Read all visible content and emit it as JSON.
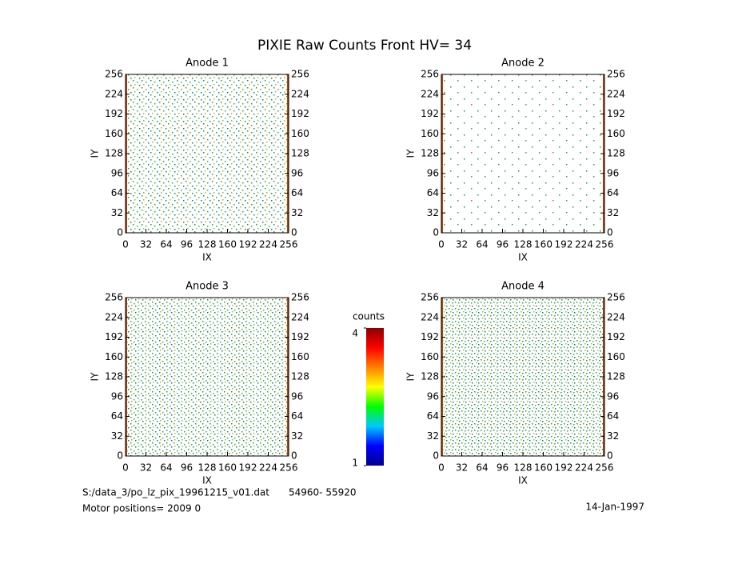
{
  "title": "PIXIE Raw Counts Front HV= 34",
  "chart_data": [
    {
      "type": "heatmap",
      "title": "Anode 1",
      "x_label": "IX",
      "y_label": "IY",
      "xlim": [
        0,
        256
      ],
      "ylim": [
        0,
        256
      ],
      "y2lim": [
        0,
        256
      ],
      "xticks": [
        0,
        32,
        64,
        96,
        128,
        160,
        192,
        224,
        256
      ],
      "yticks": [
        0,
        32,
        64,
        96,
        128,
        160,
        192,
        224,
        256
      ],
      "y2ticks": [
        0,
        32,
        64,
        96,
        128,
        160,
        192,
        224,
        256
      ]
    },
    {
      "type": "heatmap",
      "title": "Anode 2",
      "x_label": "IX",
      "y_label": "IY",
      "xlim": [
        0,
        256
      ],
      "ylim": [
        0,
        256
      ],
      "y2lim": [
        0,
        256
      ],
      "xticks": [
        0,
        32,
        64,
        96,
        128,
        160,
        192,
        224,
        256
      ],
      "yticks": [
        0,
        32,
        64,
        96,
        128,
        160,
        192,
        224,
        256
      ],
      "y2ticks": [
        0,
        32,
        64,
        96,
        128,
        160,
        192,
        224,
        256
      ]
    },
    {
      "type": "heatmap",
      "title": "Anode 3",
      "x_label": "IX",
      "y_label": "IY",
      "xlim": [
        0,
        256
      ],
      "ylim": [
        0,
        256
      ],
      "y2lim": [
        0,
        256
      ],
      "xticks": [
        0,
        32,
        64,
        96,
        128,
        160,
        192,
        224,
        256
      ],
      "yticks": [
        0,
        32,
        64,
        96,
        128,
        160,
        192,
        224,
        256
      ],
      "y2ticks": [
        0,
        32,
        64,
        96,
        128,
        160,
        192,
        224,
        256
      ]
    },
    {
      "type": "heatmap",
      "title": "Anode 4",
      "x_label": "IX",
      "y_label": "IY",
      "xlim": [
        0,
        256
      ],
      "ylim": [
        0,
        256
      ],
      "y2lim": [
        0,
        256
      ],
      "xticks": [
        0,
        32,
        64,
        96,
        128,
        160,
        192,
        224,
        256
      ],
      "yticks": [
        0,
        32,
        64,
        96,
        128,
        160,
        192,
        224,
        256
      ],
      "y2ticks": [
        0,
        32,
        64,
        96,
        128,
        160,
        192,
        224,
        256
      ]
    }
  ],
  "colorbar": {
    "label": "counts",
    "lim": [
      1,
      4
    ],
    "ticks": [
      1,
      4
    ],
    "colors": [
      "#00008b",
      "#0000ff",
      "#00c8ff",
      "#00ff00",
      "#ffff00",
      "#ff8000",
      "#ff0000",
      "#8b0000"
    ]
  },
  "footer": {
    "file": "S:/data_3/po_lz_pix_19961215_v01.dat",
    "range": "54960- 55920",
    "motor": "Motor positions= 2009 0",
    "date": "14-Jan-1997"
  }
}
